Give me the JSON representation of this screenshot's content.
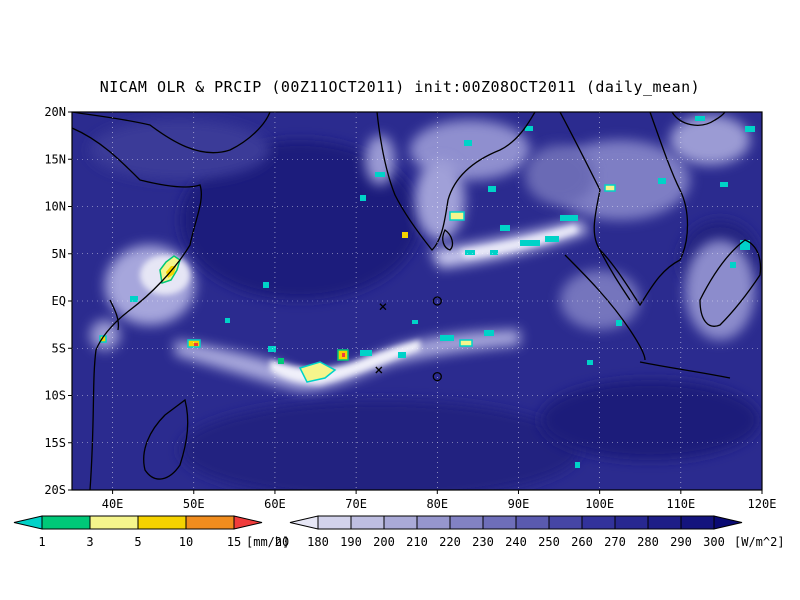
{
  "title": "NICAM OLR & PRCIP (00Z11OCT2011) init:00Z08OCT2011 (daily_mean)",
  "map": {
    "lon_range": [
      35,
      120
    ],
    "lat_range": [
      -20,
      20
    ],
    "lat_ticks": [
      "20N",
      "15N",
      "10N",
      "5N",
      "EQ",
      "5S",
      "10S",
      "15S",
      "20S"
    ],
    "lon_ticks": [
      "40E",
      "50E",
      "60E",
      "70E",
      "80E",
      "90E",
      "100E",
      "110E",
      "120E"
    ],
    "background_color": "#2b2b8f",
    "grid": "dotted",
    "markers": [
      {
        "symbol": "x",
        "lon": 73.3,
        "lat": -0.6
      },
      {
        "symbol": "x",
        "lon": 72.8,
        "lat": -7.3
      },
      {
        "symbol": "o",
        "lon": 80.0,
        "lat": 0.0
      },
      {
        "symbol": "o",
        "lon": 80.0,
        "lat": -8.0
      }
    ]
  },
  "precip_colorbar": {
    "labels": [
      "1",
      "3",
      "5",
      "10",
      "15",
      "20"
    ],
    "unit": "[mm/h]",
    "colors": [
      "#00d2c8",
      "#00c878",
      "#f5f58c",
      "#f5d200",
      "#f08c1e",
      "#f03c3c"
    ]
  },
  "olr_colorbar": {
    "labels": [
      "180",
      "190",
      "200",
      "210",
      "220",
      "230",
      "240",
      "250",
      "260",
      "270",
      "280",
      "290",
      "300"
    ],
    "unit": "[W/m^2]",
    "colors": [
      "#e6e6f5",
      "#d2d2eb",
      "#bebee1",
      "#aaaad7",
      "#9696cd",
      "#8282c3",
      "#6e6eb9",
      "#5a5aaf",
      "#4646a5",
      "#32329b",
      "#282891",
      "#1e1e87",
      "#14147d",
      "#0a0a73"
    ]
  }
}
